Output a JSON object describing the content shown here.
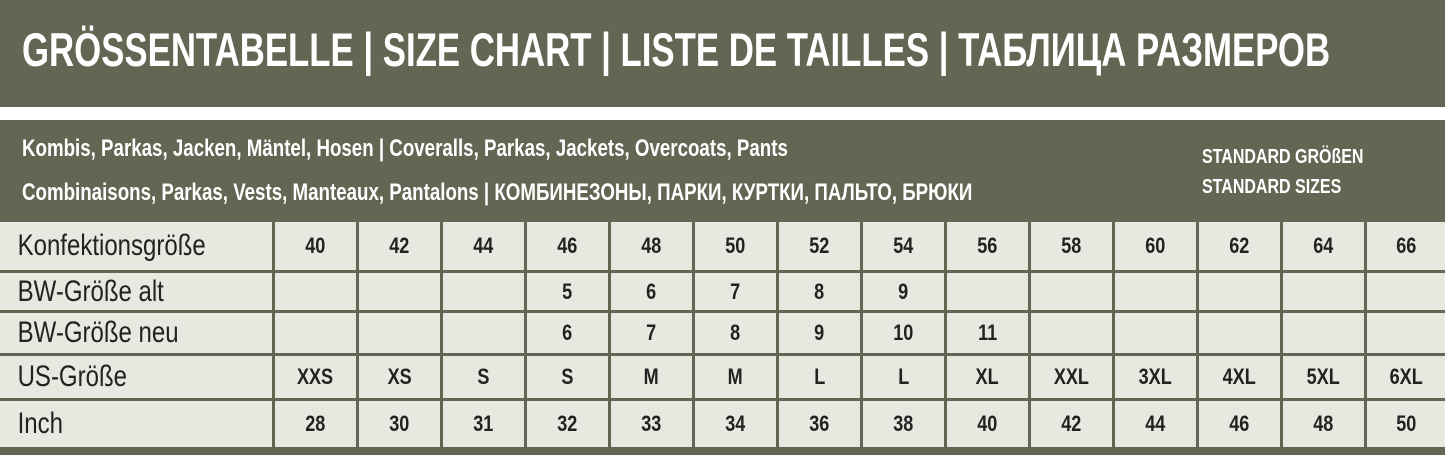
{
  "title": "GRÖSSENTABELLE | SIZE CHART | LISTE DE TAILLES | ТАБЛИЦА РАЗМЕРОВ",
  "subtitle_lines": [
    "Kombis, Parkas, Jacken, Mäntel, Hosen | Coveralls, Parkas, Jackets, Overcoats, Pants",
    "Combinaisons, Parkas, Vests, Manteaux, Pantalons | КОМБИНЕЗОНЫ, ПАРКИ, КУРТКИ, ПАЛЬТО, БРЮКИ"
  ],
  "standard_label": [
    "STANDARD GRÖßEN",
    "STANDARD SIZES"
  ],
  "colors": {
    "olive": "#646553",
    "cell": "#e8e7e0",
    "text": "#222222"
  },
  "rows": [
    {
      "label": "Konfektionsgröße",
      "values": [
        "40",
        "42",
        "44",
        "46",
        "48",
        "50",
        "52",
        "54",
        "56",
        "58",
        "60",
        "62",
        "64",
        "66"
      ]
    },
    {
      "label": "BW-Größe alt",
      "values": [
        "",
        "",
        "",
        "5",
        "6",
        "7",
        "8",
        "9",
        "",
        "",
        "",
        "",
        "",
        ""
      ]
    },
    {
      "label": "BW-Größe neu",
      "values": [
        "",
        "",
        "",
        "6",
        "7",
        "8",
        "9",
        "10",
        "11",
        "",
        "",
        "",
        "",
        ""
      ]
    },
    {
      "label": "US-Größe",
      "values": [
        "XXS",
        "XS",
        "S",
        "S",
        "M",
        "M",
        "L",
        "L",
        "XL",
        "XXL",
        "3XL",
        "4XL",
        "5XL",
        "6XL"
      ]
    },
    {
      "label": "Inch",
      "values": [
        "28",
        "30",
        "31",
        "32",
        "33",
        "34",
        "36",
        "38",
        "40",
        "42",
        "44",
        "46",
        "48",
        "50"
      ]
    }
  ]
}
